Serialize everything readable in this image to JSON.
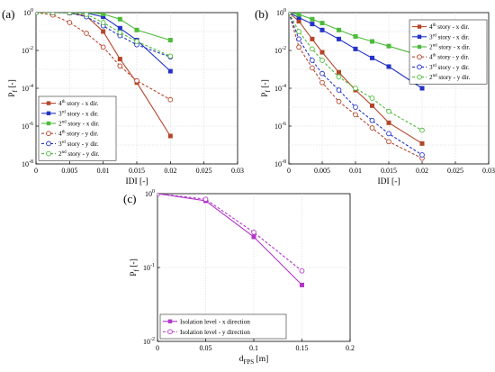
{
  "chart_data": [
    {
      "panel": "(a)",
      "type": "line",
      "xlabel": "IDI [-]",
      "ylabel": "P_f [-]",
      "yscale": "log",
      "xlim": [
        0,
        0.03
      ],
      "ylim": [
        1e-08,
        1
      ],
      "xticks": [
        "0",
        "0.005",
        "0.01",
        "0.015",
        "0.02",
        "0.025",
        "0.03"
      ],
      "yticks": [
        "10^0",
        "10^-2",
        "10^-4",
        "10^-6",
        "10^-8"
      ],
      "grid": true,
      "legend_position": "bottom-left",
      "series": [
        {
          "name": "4^th story - x dir.",
          "color": "#b5452a",
          "marker": "square",
          "dash": "solid",
          "x": [
            0,
            0.0025,
            0.005,
            0.0075,
            0.01,
            0.0125,
            0.015,
            0.02
          ],
          "y": [
            1,
            1,
            0.97,
            0.65,
            0.1,
            0.0035,
            0.0002,
            3e-07
          ]
        },
        {
          "name": "3^rd story - x dir.",
          "color": "#2432c8",
          "marker": "square",
          "dash": "solid",
          "x": [
            0,
            0.0025,
            0.005,
            0.0075,
            0.01,
            0.0125,
            0.015,
            0.02
          ],
          "y": [
            1,
            1,
            1,
            0.97,
            0.6,
            0.15,
            0.035,
            0.0008
          ]
        },
        {
          "name": "2^nd story - x dir.",
          "color": "#4dbb3a",
          "marker": "square",
          "dash": "solid",
          "x": [
            0,
            0.0025,
            0.005,
            0.0075,
            0.01,
            0.0125,
            0.015,
            0.02
          ],
          "y": [
            1,
            1,
            1,
            1,
            0.85,
            0.45,
            0.12,
            0.035
          ]
        },
        {
          "name": "4^th story - y dir.",
          "color": "#b5452a",
          "marker": "circle",
          "dash": "dashed",
          "x": [
            0,
            0.0025,
            0.005,
            0.0075,
            0.01,
            0.0125,
            0.015,
            0.02
          ],
          "y": [
            1,
            0.75,
            0.3,
            0.08,
            0.015,
            0.0015,
            0.00025,
            2.5e-05
          ]
        },
        {
          "name": "3^rd story - y dir.",
          "color": "#2432c8",
          "marker": "circle",
          "dash": "dashed",
          "x": [
            0,
            0.0025,
            0.005,
            0.0075,
            0.01,
            0.0125,
            0.015,
            0.02
          ],
          "y": [
            1,
            1,
            0.97,
            0.6,
            0.2,
            0.06,
            0.02,
            0.0045
          ]
        },
        {
          "name": "2^nd story - y dir.",
          "color": "#4dbb3a",
          "marker": "circle",
          "dash": "dashed",
          "x": [
            0,
            0.0025,
            0.005,
            0.0075,
            0.01,
            0.0125,
            0.015,
            0.02
          ],
          "y": [
            1,
            1,
            1,
            0.8,
            0.3,
            0.09,
            0.03,
            0.005
          ]
        }
      ]
    },
    {
      "panel": "(b)",
      "type": "line",
      "xlabel": "IDI [-]",
      "ylabel": "P_f [-]",
      "yscale": "log",
      "xlim": [
        0,
        0.03
      ],
      "ylim": [
        1e-08,
        1
      ],
      "xticks": [
        "0",
        "0.005",
        "0.01",
        "0.015",
        "0.02",
        "0.025",
        "0.03"
      ],
      "yticks": [
        "10^0",
        "10^-2",
        "10^-4",
        "10^-6",
        "10^-8"
      ],
      "grid": true,
      "legend_position": "top-right",
      "series": [
        {
          "name": "4^th story - x dir.",
          "color": "#b5452a",
          "marker": "square",
          "dash": "solid",
          "x": [
            0,
            0.0015,
            0.0035,
            0.005,
            0.0075,
            0.01,
            0.0125,
            0.015,
            0.02
          ],
          "y": [
            1,
            0.35,
            0.04,
            0.008,
            0.0007,
            8e-05,
            1.2e-05,
            1.5e-06,
            1.2e-07
          ]
        },
        {
          "name": "3^rd story - x dir.",
          "color": "#2432c8",
          "marker": "square",
          "dash": "solid",
          "x": [
            0,
            0.0015,
            0.0035,
            0.005,
            0.0075,
            0.01,
            0.0125,
            0.015,
            0.02
          ],
          "y": [
            1,
            0.55,
            0.25,
            0.12,
            0.04,
            0.012,
            0.004,
            0.0014,
            0.0001
          ]
        },
        {
          "name": "2^nd story - x dir.",
          "color": "#4dbb3a",
          "marker": "square",
          "dash": "solid",
          "x": [
            0,
            0.0015,
            0.0035,
            0.005,
            0.0075,
            0.01,
            0.0125,
            0.015,
            0.02
          ],
          "y": [
            1,
            0.8,
            0.45,
            0.28,
            0.12,
            0.055,
            0.03,
            0.017,
            0.005
          ]
        },
        {
          "name": "4^th story - y dir.",
          "color": "#b5452a",
          "marker": "circle",
          "dash": "dashed",
          "x": [
            0,
            0.0015,
            0.0035,
            0.005,
            0.0075,
            0.01,
            0.0125,
            0.015,
            0.02
          ],
          "y": [
            1,
            0.015,
            0.0012,
            0.0002,
            2e-05,
            4e-06,
            8e-07,
            1.5e-07,
            2e-08
          ]
        },
        {
          "name": "3^rd story - y dir.",
          "color": "#2432c8",
          "marker": "circle",
          "dash": "dashed",
          "x": [
            0,
            0.0015,
            0.0035,
            0.005,
            0.0075,
            0.01,
            0.0125,
            0.015,
            0.02
          ],
          "y": [
            1,
            0.04,
            0.003,
            0.0006,
            8e-05,
            1e-05,
            2e-06,
            4e-07,
            3e-08
          ]
        },
        {
          "name": "2^nd story - y dir.",
          "color": "#4dbb3a",
          "marker": "circle",
          "dash": "dashed",
          "x": [
            0,
            0.0015,
            0.0035,
            0.005,
            0.0075,
            0.01,
            0.0125,
            0.015,
            0.02
          ],
          "y": [
            1,
            0.1,
            0.012,
            0.003,
            0.0004,
            0.0001,
            3e-05,
            6e-06,
            6e-07
          ]
        }
      ]
    },
    {
      "panel": "(c)",
      "type": "line",
      "xlabel": "d_FPS [m]",
      "ylabel": "P_f [-]",
      "yscale": "log",
      "xlim": [
        0,
        0.2
      ],
      "ylim": [
        0.01,
        1
      ],
      "xticks": [
        "0",
        "0.05",
        "0.1",
        "0.15",
        "0.2"
      ],
      "yticks": [
        "10^0",
        "10^-1",
        "10^-2"
      ],
      "grid": true,
      "legend_position": "bottom-left",
      "series": [
        {
          "name": "Isolation level - x direction",
          "color": "#b235c9",
          "marker": "square",
          "dash": "solid",
          "x": [
            0,
            0.05,
            0.1,
            0.15
          ],
          "y": [
            1,
            0.8,
            0.26,
            0.058
          ]
        },
        {
          "name": "Isolation level - y direction",
          "color": "#b235c9",
          "marker": "circle",
          "dash": "dashed",
          "x": [
            0,
            0.05,
            0.1,
            0.15
          ],
          "y": [
            1,
            0.84,
            0.3,
            0.09
          ]
        }
      ]
    }
  ]
}
